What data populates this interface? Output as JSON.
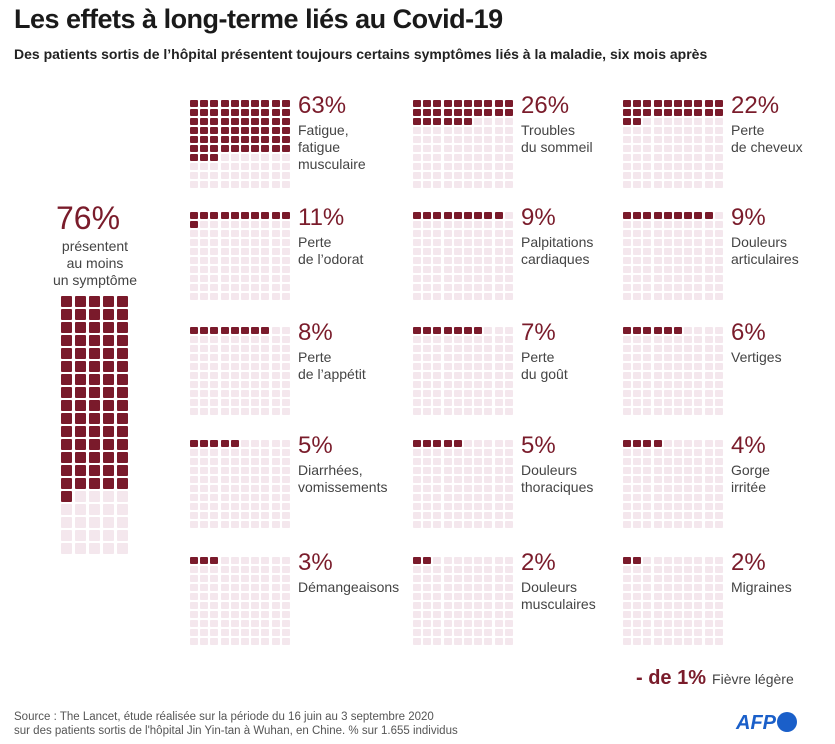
{
  "title": "Les effets à long-terme liés au Covid-19",
  "subtitle": "Des patients sortis de l’hôpital présentent toujours certains symptômes liés à la maladie, six mois après",
  "colors": {
    "filled": "#7a1a2b",
    "empty": "#f4e7ed"
  },
  "chart_data": {
    "type": "waffle",
    "total": {
      "value": 76,
      "pct_label": "76%",
      "label": "présentent\nau moins\nun symptôme",
      "columns": 5,
      "rows": 20
    },
    "items": [
      {
        "value": 63,
        "pct_label": "63%",
        "label": "Fatigue,\nfatigue\nmusculaire"
      },
      {
        "value": 26,
        "pct_label": "26%",
        "label": "Troubles\ndu sommeil"
      },
      {
        "value": 22,
        "pct_label": "22%",
        "label": "Perte\nde cheveux"
      },
      {
        "value": 11,
        "pct_label": "11%",
        "label": "Perte\nde l’odorat"
      },
      {
        "value": 9,
        "pct_label": "9%",
        "label": "Palpitations\ncardiaques"
      },
      {
        "value": 9,
        "pct_label": "9%",
        "label": "Douleurs\narticulaires"
      },
      {
        "value": 8,
        "pct_label": "8%",
        "label": "Perte\nde l’appétit"
      },
      {
        "value": 7,
        "pct_label": "7%",
        "label": "Perte\ndu goût"
      },
      {
        "value": 6,
        "pct_label": "6%",
        "label": "Vertiges"
      },
      {
        "value": 5,
        "pct_label": "5%",
        "label": "Diarrhées,\nvomissements"
      },
      {
        "value": 5,
        "pct_label": "5%",
        "label": "Douleurs\nthoraciques"
      },
      {
        "value": 4,
        "pct_label": "4%",
        "label": "Gorge\nirritée"
      },
      {
        "value": 3,
        "pct_label": "3%",
        "label": "Démangeaisons"
      },
      {
        "value": 2,
        "pct_label": "2%",
        "label": "Douleurs\nmusculaires"
      },
      {
        "value": 2,
        "pct_label": "2%",
        "label": "Migraines"
      }
    ],
    "minor": {
      "pct_label": "- de 1%",
      "label": "Fièvre légère"
    }
  },
  "source": "Source : The Lancet, étude réalisée sur la période du 16 juin au 3 septembre 2020\nsur des patients sortis de l'hôpital Jin Yin-tan à Wuhan, en Chine. % sur 1.655 individus",
  "logo": "AFP"
}
